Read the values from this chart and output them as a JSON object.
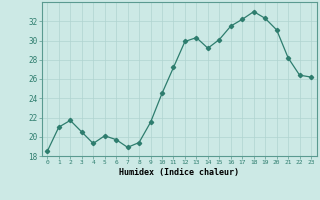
{
  "x": [
    0,
    1,
    2,
    3,
    4,
    5,
    6,
    7,
    8,
    9,
    10,
    11,
    12,
    13,
    14,
    15,
    16,
    17,
    18,
    19,
    20,
    21,
    22,
    23
  ],
  "y": [
    18.5,
    21.0,
    21.7,
    20.5,
    19.3,
    20.1,
    19.7,
    18.9,
    19.4,
    21.5,
    24.5,
    27.2,
    29.9,
    30.3,
    29.2,
    30.1,
    31.5,
    32.2,
    33.0,
    32.3,
    31.1,
    28.2,
    26.4,
    26.2
  ],
  "line_color": "#2e7d6e",
  "marker": "D",
  "marker_size": 2.2,
  "bg_color": "#cce9e5",
  "grid_color": "#b0d4d0",
  "xlabel": "Humidex (Indice chaleur)",
  "ylim": [
    18,
    34
  ],
  "yticks": [
    18,
    20,
    22,
    24,
    26,
    28,
    30,
    32
  ],
  "xlim": [
    -0.5,
    23.5
  ],
  "xticks": [
    0,
    1,
    2,
    3,
    4,
    5,
    6,
    7,
    8,
    9,
    10,
    11,
    12,
    13,
    14,
    15,
    16,
    17,
    18,
    19,
    20,
    21,
    22,
    23
  ]
}
